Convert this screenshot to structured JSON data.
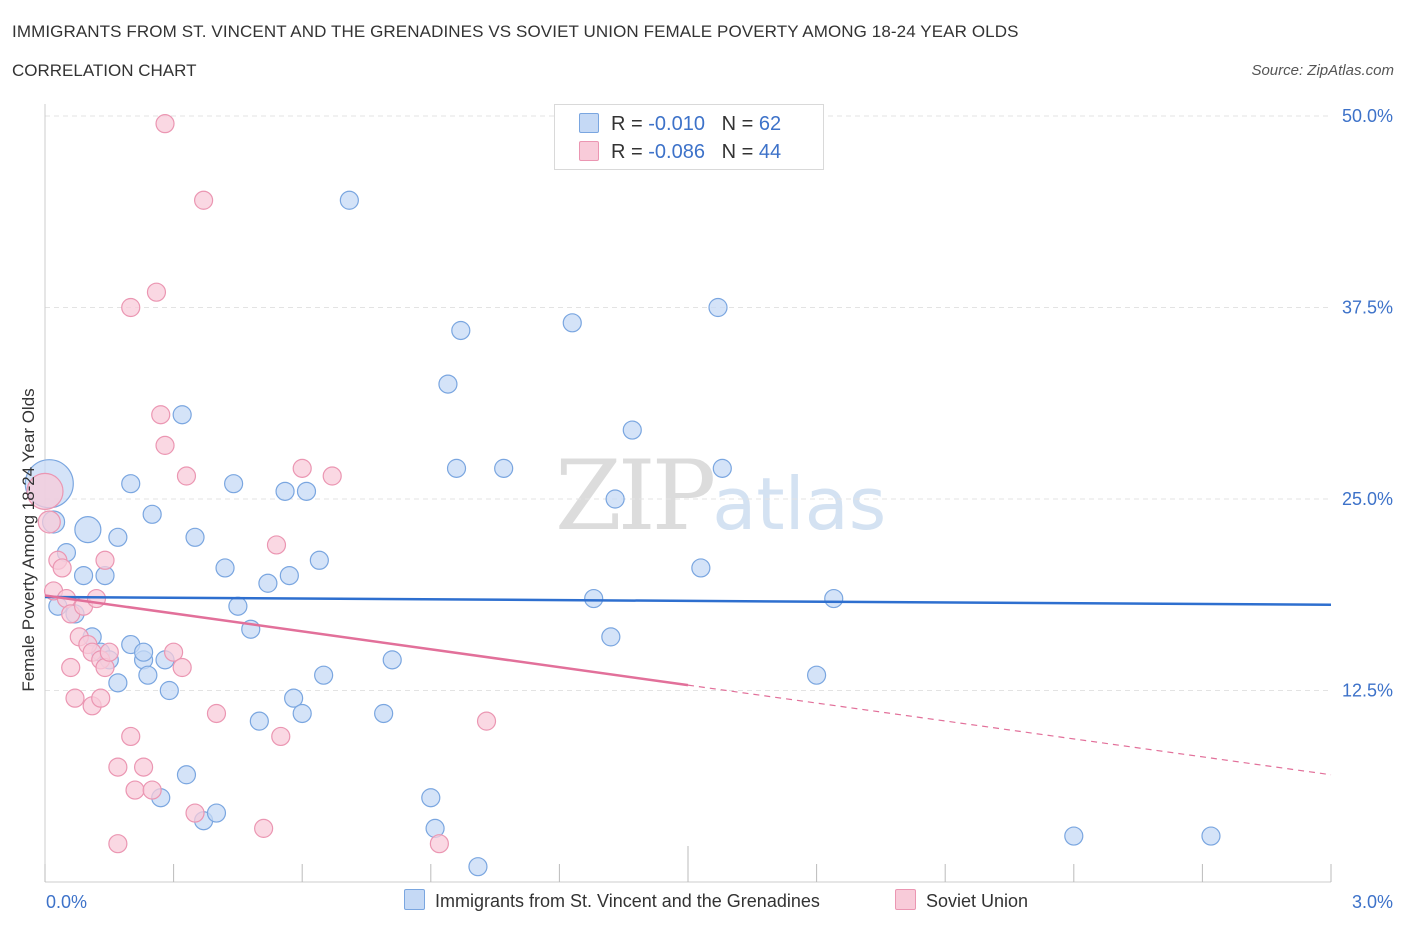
{
  "header": {
    "title": "IMMIGRANTS FROM ST. VINCENT AND THE GRENADINES VS SOVIET UNION FEMALE POVERTY AMONG 18-24 YEAR OLDS",
    "subtitle": "CORRELATION CHART",
    "source": "Source: ZipAtlas.com"
  },
  "watermark": {
    "zip": "ZIP",
    "atlas": "atlas"
  },
  "colors": {
    "blue_fill": "#c5d9f5",
    "blue_stroke": "#7aa6e0",
    "blue_line": "#2e6fcf",
    "pink_fill": "#f8cbd9",
    "pink_stroke": "#eb96b2",
    "pink_line": "#e2709a",
    "tick_label": "#3d72c9",
    "grid": "#e3e3e3"
  },
  "legend": {
    "rows": [
      {
        "r_label": "R =",
        "r_value": "-0.010",
        "n_label": "N =",
        "n_value": "62",
        "color": "blue"
      },
      {
        "r_label": "R =",
        "r_value": "-0.086",
        "n_label": "N =",
        "n_value": "44",
        "color": "pink"
      }
    ]
  },
  "bottom_legend": {
    "series1": "Immigrants from St. Vincent and the Grenadines",
    "series2": "Soviet Union"
  },
  "chart_data": {
    "type": "scatter",
    "title": "IMMIGRANTS FROM ST. VINCENT AND THE GRENADINES VS SOVIET UNION FEMALE POVERTY AMONG 18-24 YEAR OLDS",
    "xlabel": "",
    "ylabel": "Female Poverty Among 18-24 Year Olds",
    "xlim": [
      0,
      3.0
    ],
    "ylim": [
      0,
      50
    ],
    "x_tick_labels": [
      "0.0%",
      "3.0%"
    ],
    "y_ticks": [
      12.5,
      25.0,
      37.5,
      50.0
    ],
    "y_tick_labels": [
      "12.5%",
      "25.0%",
      "37.5%",
      "50.0%"
    ],
    "grid": "horizontal dashed",
    "series": [
      {
        "name": "Immigrants from St. Vincent and the Grenadines",
        "color": "blue",
        "trend": {
          "x": [
            0.0,
            3.0
          ],
          "y": [
            18.6,
            18.1
          ],
          "dashed_from": null
        },
        "points": [
          [
            0.01,
            26.0,
            24
          ],
          [
            0.02,
            23.5,
            11
          ],
          [
            0.05,
            21.5,
            9
          ],
          [
            0.1,
            23.0,
            13
          ],
          [
            0.03,
            18.0,
            9
          ],
          [
            0.07,
            17.5,
            9
          ],
          [
            0.09,
            20.0,
            9
          ],
          [
            0.14,
            20.0,
            9
          ],
          [
            0.11,
            16.0,
            9
          ],
          [
            0.13,
            15.0,
            9
          ],
          [
            0.15,
            14.5,
            9
          ],
          [
            0.2,
            15.5,
            9
          ],
          [
            0.23,
            14.5,
            9
          ],
          [
            0.23,
            15.0,
            9
          ],
          [
            0.24,
            13.5,
            9
          ],
          [
            0.17,
            13.0,
            9
          ],
          [
            0.2,
            26.0,
            9
          ],
          [
            0.17,
            22.5,
            9
          ],
          [
            0.25,
            24.0,
            9
          ],
          [
            0.28,
            14.5,
            9
          ],
          [
            0.29,
            12.5,
            9
          ],
          [
            0.32,
            30.5,
            9
          ],
          [
            0.35,
            22.5,
            9
          ],
          [
            0.33,
            7.0,
            9
          ],
          [
            0.27,
            5.5,
            9
          ],
          [
            0.37,
            4.0,
            9
          ],
          [
            0.4,
            4.5,
            9
          ],
          [
            0.42,
            20.5,
            9
          ],
          [
            0.44,
            26.0,
            9
          ],
          [
            0.45,
            18.0,
            9
          ],
          [
            0.48,
            16.5,
            9
          ],
          [
            0.5,
            10.5,
            9
          ],
          [
            0.52,
            19.5,
            9
          ],
          [
            0.56,
            25.5,
            9
          ],
          [
            0.57,
            20.0,
            9
          ],
          [
            0.58,
            12.0,
            9
          ],
          [
            0.6,
            11.0,
            9
          ],
          [
            0.61,
            25.5,
            9
          ],
          [
            0.64,
            21.0,
            9
          ],
          [
            0.65,
            13.5,
            9
          ],
          [
            0.71,
            44.5,
            9
          ],
          [
            0.79,
            11.0,
            9
          ],
          [
            0.81,
            14.5,
            9
          ],
          [
            0.9,
            5.5,
            9
          ],
          [
            0.91,
            3.5,
            9
          ],
          [
            0.94,
            32.5,
            9
          ],
          [
            0.96,
            27.0,
            9
          ],
          [
            0.97,
            36.0,
            9
          ],
          [
            1.01,
            1.0,
            9
          ],
          [
            1.07,
            27.0,
            9
          ],
          [
            1.23,
            36.5,
            9
          ],
          [
            1.28,
            18.5,
            9
          ],
          [
            1.32,
            16.0,
            9
          ],
          [
            1.33,
            25.0,
            9
          ],
          [
            1.37,
            29.5,
            9
          ],
          [
            1.53,
            20.5,
            9
          ],
          [
            1.57,
            37.5,
            9
          ],
          [
            1.58,
            27.0,
            9
          ],
          [
            1.8,
            13.5,
            9
          ],
          [
            1.84,
            18.5,
            9
          ],
          [
            2.4,
            3.0,
            9
          ],
          [
            2.72,
            3.0,
            9
          ]
        ]
      },
      {
        "name": "Soviet Union",
        "color": "pink",
        "trend": {
          "x": [
            0.0,
            3.0
          ],
          "y": [
            18.7,
            7.0
          ],
          "dashed_from": 1.5
        },
        "points": [
          [
            0.0,
            25.5,
            18
          ],
          [
            0.01,
            23.5,
            11
          ],
          [
            0.03,
            21.0,
            9
          ],
          [
            0.04,
            20.5,
            9
          ],
          [
            0.02,
            19.0,
            9
          ],
          [
            0.05,
            18.5,
            9
          ],
          [
            0.06,
            17.5,
            9
          ],
          [
            0.09,
            18.0,
            9
          ],
          [
            0.12,
            18.5,
            9
          ],
          [
            0.08,
            16.0,
            9
          ],
          [
            0.1,
            15.5,
            9
          ],
          [
            0.11,
            15.0,
            9
          ],
          [
            0.13,
            14.5,
            9
          ],
          [
            0.14,
            14.0,
            9
          ],
          [
            0.07,
            12.0,
            9
          ],
          [
            0.11,
            11.5,
            9
          ],
          [
            0.13,
            12.0,
            9
          ],
          [
            0.14,
            21.0,
            9
          ],
          [
            0.2,
            37.5,
            9
          ],
          [
            0.26,
            38.5,
            9
          ],
          [
            0.28,
            49.5,
            9
          ],
          [
            0.27,
            30.5,
            9
          ],
          [
            0.28,
            28.5,
            9
          ],
          [
            0.3,
            15.0,
            9
          ],
          [
            0.32,
            14.0,
            9
          ],
          [
            0.33,
            26.5,
            9
          ],
          [
            0.37,
            44.5,
            9
          ],
          [
            0.4,
            11.0,
            9
          ],
          [
            0.2,
            9.5,
            9
          ],
          [
            0.17,
            7.5,
            9
          ],
          [
            0.21,
            6.0,
            9
          ],
          [
            0.23,
            7.5,
            9
          ],
          [
            0.25,
            6.0,
            9
          ],
          [
            0.17,
            2.5,
            9
          ],
          [
            0.35,
            4.5,
            9
          ],
          [
            0.51,
            3.5,
            9
          ],
          [
            0.54,
            22.0,
            9
          ],
          [
            0.55,
            9.5,
            9
          ],
          [
            0.6,
            27.0,
            9
          ],
          [
            0.67,
            26.5,
            9
          ],
          [
            0.92,
            2.5,
            9
          ],
          [
            1.03,
            10.5,
            9
          ],
          [
            0.06,
            14.0,
            9
          ],
          [
            0.15,
            15.0,
            9
          ]
        ]
      }
    ]
  }
}
